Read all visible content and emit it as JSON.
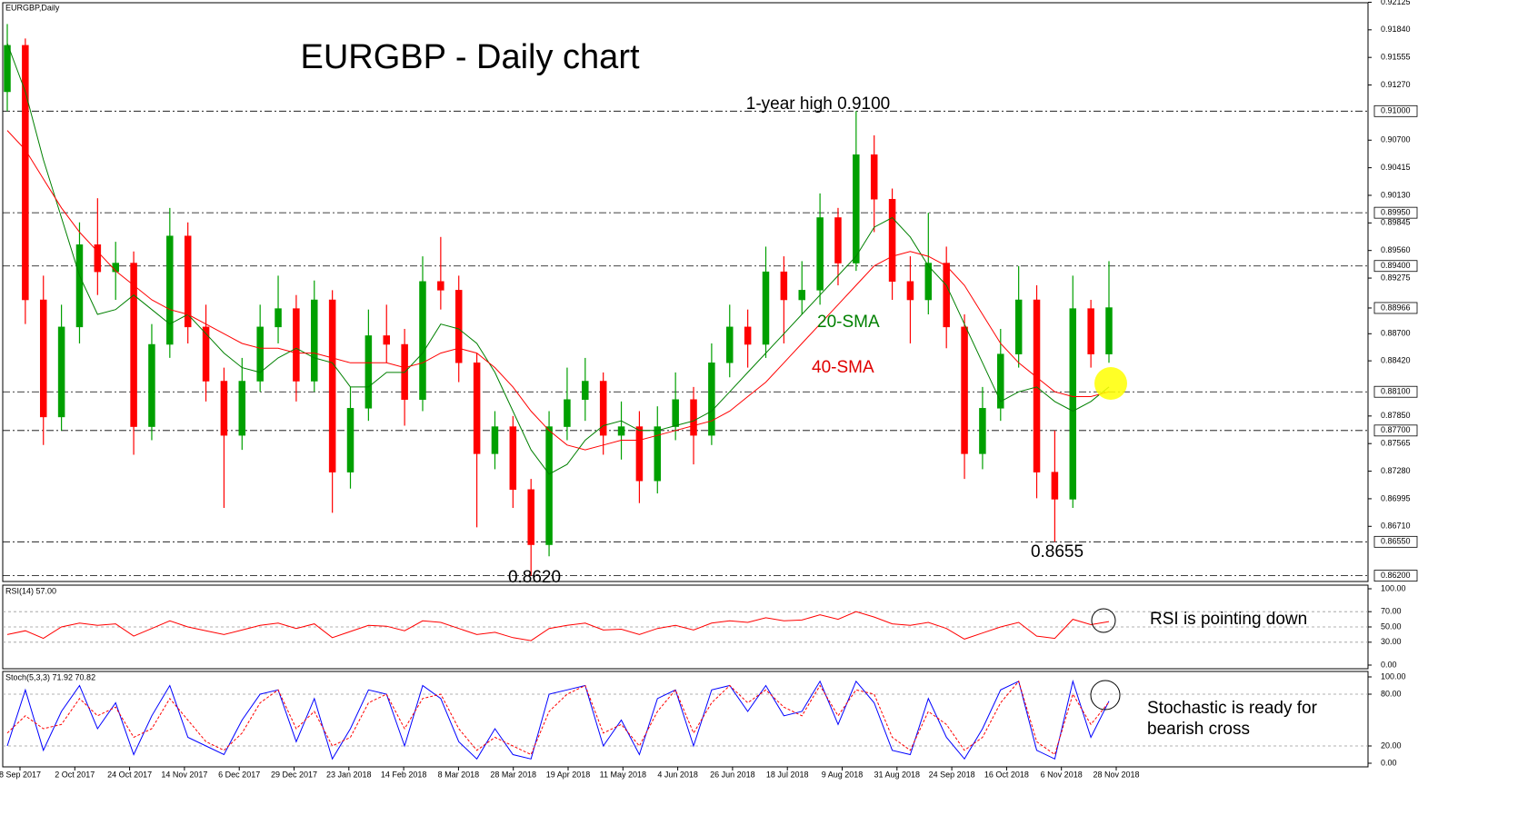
{
  "chart_data": {
    "type": "candlestick",
    "title": "EURGBP - Daily chart",
    "symbol_label": "EURGBP,Daily",
    "up_color": "#00a000",
    "down_color": "#ff0000",
    "open": [
      0.912,
      0.9168,
      0.8905,
      0.8784,
      0.8877,
      0.8962,
      0.8934,
      0.8943,
      0.8774,
      0.8859,
      0.8971,
      0.8877,
      0.8821,
      0.8765,
      0.8821,
      0.8877,
      0.8896,
      0.8821,
      0.8905,
      0.8727,
      0.8793,
      0.8868,
      0.8859,
      0.8802,
      0.8924,
      0.8915,
      0.884,
      0.8746,
      0.8774,
      0.8709,
      0.8652,
      0.8774,
      0.8802,
      0.8821,
      0.8765,
      0.8774,
      0.8718,
      0.8774,
      0.8802,
      0.8765,
      0.884,
      0.8877,
      0.8859,
      0.8934,
      0.8905,
      0.8915,
      0.899,
      0.8943,
      0.9055,
      0.9009,
      0.8924,
      0.8905,
      0.8943,
      0.8877,
      0.8746,
      0.8793,
      0.8849,
      0.8905,
      0.8727,
      0.8699,
      0.8896,
      0.8849
    ],
    "high": [
      0.919,
      0.9175,
      0.893,
      0.89,
      0.8985,
      0.901,
      0.8965,
      0.8955,
      0.888,
      0.9,
      0.8985,
      0.89,
      0.8835,
      0.8845,
      0.89,
      0.893,
      0.891,
      0.8925,
      0.8915,
      0.8815,
      0.8895,
      0.89,
      0.8875,
      0.895,
      0.897,
      0.893,
      0.885,
      0.879,
      0.8785,
      0.872,
      0.879,
      0.8835,
      0.8845,
      0.883,
      0.88,
      0.879,
      0.8795,
      0.883,
      0.8815,
      0.886,
      0.89,
      0.8895,
      0.896,
      0.895,
      0.8945,
      0.9015,
      0.9,
      0.91,
      0.9075,
      0.902,
      0.895,
      0.8995,
      0.896,
      0.889,
      0.8815,
      0.8875,
      0.894,
      0.892,
      0.877,
      0.893,
      0.8905,
      0.8945
    ],
    "low": [
      0.91,
      0.888,
      0.8755,
      0.877,
      0.886,
      0.891,
      0.8905,
      0.8745,
      0.876,
      0.8845,
      0.886,
      0.88,
      0.869,
      0.875,
      0.881,
      0.886,
      0.88,
      0.881,
      0.8685,
      0.871,
      0.878,
      0.884,
      0.8775,
      0.879,
      0.8895,
      0.882,
      0.867,
      0.873,
      0.869,
      0.862,
      0.864,
      0.876,
      0.878,
      0.8745,
      0.874,
      0.8695,
      0.8705,
      0.876,
      0.8735,
      0.8755,
      0.8825,
      0.8835,
      0.8845,
      0.886,
      0.889,
      0.89,
      0.892,
      0.8935,
      0.8975,
      0.8905,
      0.886,
      0.889,
      0.8855,
      0.872,
      0.873,
      0.878,
      0.8835,
      0.87,
      0.8655,
      0.869,
      0.8835,
      0.884
    ],
    "close": [
      0.9168,
      0.8905,
      0.8784,
      0.8877,
      0.8962,
      0.8934,
      0.8943,
      0.8774,
      0.8859,
      0.8971,
      0.8877,
      0.8821,
      0.8765,
      0.8821,
      0.8877,
      0.8896,
      0.8821,
      0.8905,
      0.8727,
      0.8793,
      0.8868,
      0.8859,
      0.8802,
      0.8924,
      0.8915,
      0.884,
      0.8746,
      0.8774,
      0.8709,
      0.8652,
      0.8774,
      0.8802,
      0.8821,
      0.8765,
      0.8774,
      0.8718,
      0.8774,
      0.8802,
      0.8765,
      0.884,
      0.8877,
      0.8859,
      0.8934,
      0.8905,
      0.8915,
      0.899,
      0.8943,
      0.9055,
      0.9009,
      0.8924,
      0.8905,
      0.8943,
      0.8877,
      0.8746,
      0.8793,
      0.8849,
      0.8905,
      0.8727,
      0.8699,
      0.8896,
      0.8849,
      0.8897
    ],
    "overlays": [
      {
        "name": "20-SMA",
        "color": "#008000",
        "values": [
          0.917,
          0.912,
          0.905,
          0.899,
          0.893,
          0.889,
          0.8895,
          0.891,
          0.8895,
          0.888,
          0.889,
          0.887,
          0.885,
          0.8835,
          0.883,
          0.8845,
          0.8855,
          0.8845,
          0.884,
          0.8815,
          0.8815,
          0.883,
          0.883,
          0.885,
          0.888,
          0.8875,
          0.886,
          0.883,
          0.879,
          0.875,
          0.8725,
          0.8735,
          0.876,
          0.8775,
          0.878,
          0.877,
          0.877,
          0.8775,
          0.878,
          0.879,
          0.881,
          0.883,
          0.885,
          0.887,
          0.889,
          0.891,
          0.893,
          0.895,
          0.898,
          0.899,
          0.897,
          0.894,
          0.892,
          0.888,
          0.884,
          0.88,
          0.881,
          0.8815,
          0.88,
          0.879,
          0.88,
          0.8815
        ]
      },
      {
        "name": "40-SMA",
        "color": "#ff0000",
        "values": [
          0.908,
          0.906,
          0.903,
          0.9,
          0.8975,
          0.8955,
          0.8935,
          0.892,
          0.8905,
          0.8895,
          0.889,
          0.888,
          0.887,
          0.886,
          0.8855,
          0.8855,
          0.885,
          0.885,
          0.8845,
          0.884,
          0.884,
          0.884,
          0.8835,
          0.884,
          0.885,
          0.8855,
          0.885,
          0.8835,
          0.8815,
          0.879,
          0.877,
          0.8755,
          0.875,
          0.8755,
          0.876,
          0.876,
          0.8765,
          0.877,
          0.8775,
          0.878,
          0.879,
          0.8805,
          0.882,
          0.884,
          0.886,
          0.888,
          0.89,
          0.892,
          0.894,
          0.895,
          0.8955,
          0.895,
          0.894,
          0.892,
          0.889,
          0.886,
          0.884,
          0.8825,
          0.881,
          0.8805,
          0.8805,
          0.881
        ]
      }
    ],
    "ylim": [
      0.8614,
      0.9212
    ],
    "yticks": [
      0.92125,
      {
        "value": 0.9184,
        "label": "0.91840"
      },
      0.91555,
      {
        "value": 0.9127,
        "label": "0.91270"
      },
      {
        "value": 0.907,
        "label": "0.90700"
      },
      0.90415,
      {
        "value": 0.9013,
        "label": "0.90130"
      },
      0.89845,
      {
        "value": 0.8956,
        "label": "0.89560"
      },
      0.89275,
      {
        "value": 0.887,
        "label": "0.88700"
      },
      {
        "value": 0.8842,
        "label": "0.88420"
      },
      {
        "value": 0.8785,
        "label": "0.87850"
      },
      0.87565,
      {
        "value": 0.8728,
        "label": "0.87280"
      },
      0.86995,
      {
        "value": 0.8671,
        "label": "0.86710"
      }
    ],
    "levels": [
      {
        "value": 0.91,
        "label": "0.91000"
      },
      {
        "value": 0.8995,
        "label": "0.89950"
      },
      {
        "value": 0.894,
        "label": "0.89400"
      },
      {
        "value": 0.881,
        "label": "0.88100"
      },
      {
        "value": 0.877,
        "label": "0.87700"
      },
      {
        "value": 0.8655,
        "label": "0.86550"
      },
      {
        "value": 0.862,
        "label": "0.86200"
      }
    ],
    "last_price": {
      "value": 0.88966,
      "label": "0.88966"
    },
    "xtick_labels": [
      "8 Sep 2017",
      "2 Oct 2017",
      "24 Oct 2017",
      "14 Nov 2017",
      "6 Dec 2017",
      "29 Dec 2017",
      "23 Jan 2018",
      "14 Feb 2018",
      "8 Mar 2018",
      "28 Mar 2018",
      "19 Apr 2018",
      "11 May 2018",
      "4 Jun 2018",
      "26 Jun 2018",
      "18 Jul 2018",
      "9 Aug 2018",
      "31 Aug 2018",
      "24 Sep 2018",
      "16 Oct 2018",
      "6 Nov 2018",
      "28 Nov 2018"
    ],
    "annotations": {
      "high": "1-year high 0.9100",
      "low_march": "0.8620",
      "low_november": "0.8655"
    },
    "rsi": {
      "label": "RSI(14) 57.00",
      "color": "#ff0000",
      "note": "RSI is pointing down",
      "values": [
        40,
        45,
        35,
        50,
        55,
        52,
        54,
        38,
        48,
        58,
        50,
        45,
        40,
        46,
        52,
        55,
        48,
        54,
        36,
        44,
        52,
        51,
        45,
        58,
        56,
        48,
        40,
        43,
        36,
        32,
        48,
        52,
        55,
        46,
        47,
        40,
        48,
        52,
        46,
        55,
        58,
        56,
        62,
        58,
        59,
        66,
        60,
        70,
        63,
        54,
        52,
        56,
        48,
        34,
        42,
        50,
        56,
        38,
        35,
        60,
        53,
        57
      ],
      "ylim": [
        0,
        100
      ],
      "yticks": [
        {
          "value": 100,
          "label": "100.00"
        },
        {
          "value": 70,
          "label": "70.00"
        },
        {
          "value": 50,
          "label": "50.00"
        },
        {
          "value": 30,
          "label": "30.00"
        },
        {
          "value": 0,
          "label": "0.00"
        }
      ]
    },
    "stoch": {
      "label": "Stoch(5,3,3) 71.92 70.82",
      "note": [
        "Stochastic is ready for",
        "bearish cross"
      ],
      "k": {
        "color": "#0000ff",
        "values": [
          20,
          85,
          15,
          60,
          90,
          40,
          70,
          10,
          55,
          90,
          30,
          20,
          10,
          50,
          80,
          85,
          25,
          75,
          5,
          40,
          85,
          80,
          20,
          90,
          75,
          25,
          5,
          40,
          10,
          5,
          80,
          85,
          90,
          20,
          50,
          10,
          75,
          85,
          20,
          85,
          90,
          60,
          90,
          55,
          60,
          95,
          45,
          95,
          70,
          15,
          10,
          75,
          30,
          5,
          40,
          85,
          95,
          15,
          5,
          95,
          30,
          71.92
        ]
      },
      "d": {
        "color": "#ff0000",
        "values": [
          35,
          55,
          40,
          45,
          75,
          55,
          65,
          30,
          40,
          75,
          50,
          25,
          15,
          35,
          70,
          85,
          40,
          60,
          20,
          30,
          70,
          80,
          40,
          75,
          80,
          40,
          15,
          30,
          20,
          10,
          60,
          80,
          90,
          35,
          45,
          20,
          60,
          85,
          35,
          70,
          90,
          70,
          85,
          65,
          55,
          90,
          55,
          85,
          80,
          30,
          15,
          60,
          45,
          15,
          30,
          70,
          95,
          25,
          10,
          80,
          45,
          70.82
        ]
      },
      "ylim": [
        0,
        100
      ],
      "yticks": [
        {
          "value": 100,
          "label": "100.00"
        },
        {
          "value": 80,
          "label": "80.00"
        },
        {
          "value": 20,
          "label": "20.00"
        },
        {
          "value": 0,
          "label": "0.00"
        }
      ]
    }
  }
}
